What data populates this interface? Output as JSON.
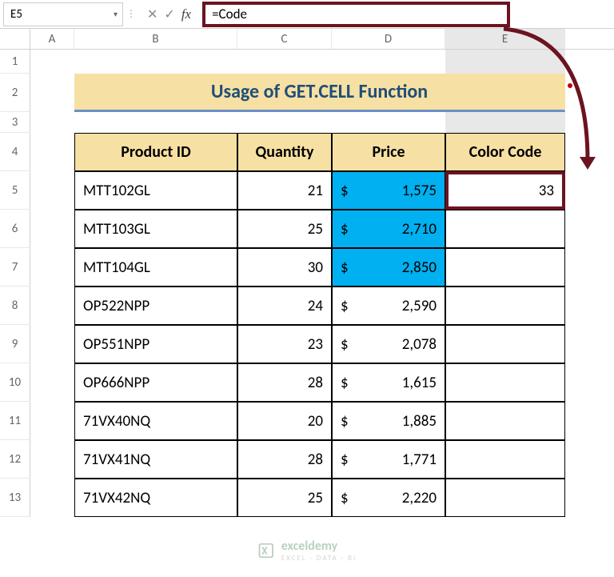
{
  "nameBox": "E5",
  "formula": "=Code",
  "fxLabel": "fx",
  "columns": [
    "A",
    "B",
    "C",
    "D",
    "E"
  ],
  "rowNumbers": [
    "1",
    "2",
    "3",
    "4",
    "5",
    "6",
    "7",
    "8",
    "9",
    "10",
    "11",
    "12",
    "13"
  ],
  "title": "Usage of GET.CELL Function",
  "headers": {
    "productId": "Product ID",
    "quantity": "Quantity",
    "price": "Price",
    "colorCode": "Color Code"
  },
  "currencySymbol": "$",
  "rows": [
    {
      "id": "MTT102GL",
      "qty": "21",
      "price": "1,575",
      "color": "33",
      "blue": true
    },
    {
      "id": "MTT103GL",
      "qty": "25",
      "price": "2,710",
      "color": "",
      "blue": true
    },
    {
      "id": "MTT104GL",
      "qty": "30",
      "price": "2,850",
      "color": "",
      "blue": true
    },
    {
      "id": "OP522NPP",
      "qty": "24",
      "price": "2,590",
      "color": "",
      "blue": false
    },
    {
      "id": "OP551NPP",
      "qty": "23",
      "price": "2,078",
      "color": "",
      "blue": false
    },
    {
      "id": "OP666NPP",
      "qty": "28",
      "price": "1,615",
      "color": "",
      "blue": false
    },
    {
      "id": "71VX40NQ",
      "qty": "20",
      "price": "1,885",
      "color": "",
      "blue": false
    },
    {
      "id": "71VX41NQ",
      "qty": "28",
      "price": "1,771",
      "color": "",
      "blue": false
    },
    {
      "id": "71VX42NQ",
      "qty": "25",
      "price": "2,220",
      "color": "",
      "blue": false
    }
  ],
  "colors": {
    "highlight": "#6b1420",
    "headerBg": "#f7e0a3",
    "titleText": "#1f4e79",
    "priceBlue": "#00b0f0",
    "titleUnderline": "#6b8fc9"
  },
  "watermark": {
    "name": "exceldemy",
    "sub": "EXCEL · DATA · BI"
  }
}
